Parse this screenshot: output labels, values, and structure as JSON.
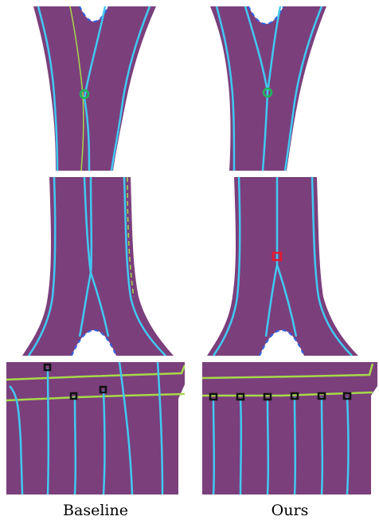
{
  "captions": {
    "left": "Baseline",
    "right": "Ours"
  },
  "colors": {
    "road": "#7b3f7c",
    "lane_line": "#41c9f2",
    "ground_truth": "#a7d94a",
    "dash_blue": "#2e63e8",
    "junction_marker_ok": "#1fb85a",
    "junction_marker_err": "#e8182e",
    "keypoint_marker": "#111111"
  },
  "panels": [
    {
      "row": "split",
      "method": "baseline",
      "marker": "green-circle"
    },
    {
      "row": "split",
      "method": "ours",
      "marker": "green-circle"
    },
    {
      "row": "merge",
      "method": "baseline",
      "marker": "none"
    },
    {
      "row": "merge",
      "method": "ours",
      "marker": "red-square"
    },
    {
      "row": "straight",
      "method": "baseline",
      "marker": "black-squares",
      "count": 3
    },
    {
      "row": "straight",
      "method": "ours",
      "marker": "black-squares",
      "count": 6
    }
  ]
}
